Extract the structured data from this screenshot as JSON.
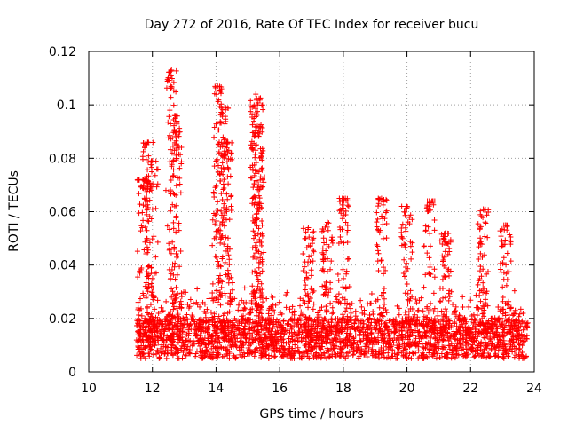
{
  "chart_data": {
    "type": "scatter",
    "title": "Day 272 of 2016, Rate Of TEC Index for receiver bucu",
    "xlabel": "GPS time / hours",
    "ylabel": "ROTI / TECUs",
    "xlim": [
      10,
      24
    ],
    "ylim": [
      0,
      0.12
    ],
    "xticks": [
      10,
      12,
      14,
      16,
      18,
      20,
      22,
      24
    ],
    "xtick_labels": [
      "10",
      "12",
      "14",
      "16",
      "18",
      "20",
      "22",
      "24"
    ],
    "yticks": [
      0,
      0.02,
      0.04,
      0.06,
      0.08,
      0.1,
      0.12
    ],
    "ytick_labels": [
      "0",
      "0.02",
      "0.04",
      "0.06",
      "0.08",
      "0.1",
      "0.12"
    ],
    "grid": true,
    "marker": "plus",
    "color": "#ff0000",
    "series": [
      {
        "name": "ROTI",
        "x_range": [
          11.5,
          23.8
        ],
        "baseline_range": [
          0.005,
          0.02
        ],
        "peaks": [
          [
            11.7,
            0.072
          ],
          [
            11.85,
            0.086
          ],
          [
            12.0,
            0.079
          ],
          [
            12.6,
            0.113
          ],
          [
            12.7,
            0.096
          ],
          [
            12.75,
            0.09
          ],
          [
            14.05,
            0.107
          ],
          [
            14.1,
            0.086
          ],
          [
            14.3,
            0.099
          ],
          [
            14.35,
            0.086
          ],
          [
            15.25,
            0.104
          ],
          [
            15.3,
            0.1
          ],
          [
            15.3,
            0.092
          ],
          [
            15.35,
            0.075
          ],
          [
            16.9,
            0.054
          ],
          [
            17.5,
            0.056
          ],
          [
            18.0,
            0.065
          ],
          [
            19.2,
            0.065
          ],
          [
            20.0,
            0.062
          ],
          [
            20.7,
            0.064
          ],
          [
            21.2,
            0.052
          ],
          [
            22.4,
            0.061
          ],
          [
            23.1,
            0.055
          ]
        ]
      }
    ]
  }
}
